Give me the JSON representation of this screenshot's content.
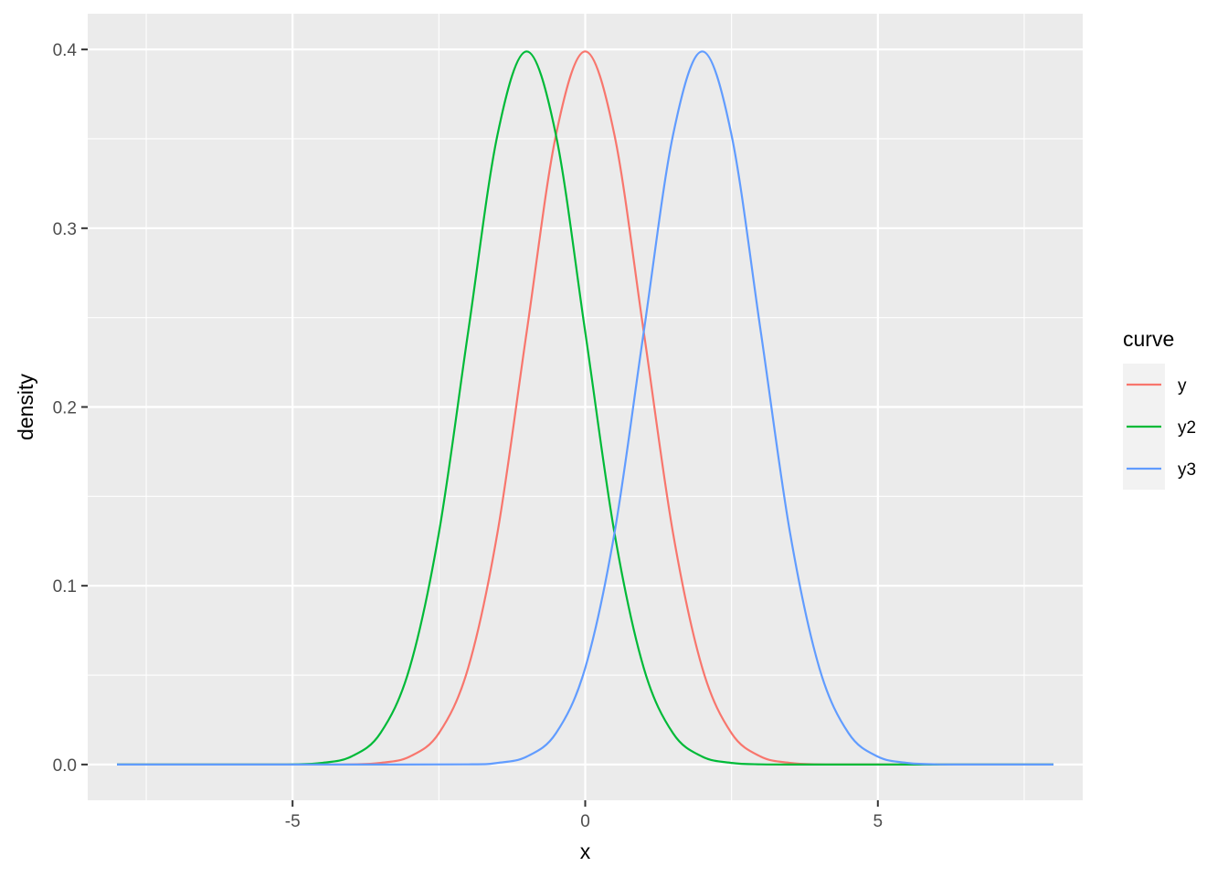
{
  "chart_data": {
    "type": "line",
    "xlabel": "x",
    "ylabel": "density",
    "xlim": [
      -8.5,
      8.5
    ],
    "ylim": [
      -0.02,
      0.42
    ],
    "x_ticks": [
      -5,
      0,
      5
    ],
    "x_tick_labels": [
      "-5",
      "0",
      "5"
    ],
    "x_minor_ticks": [
      -7.5,
      -2.5,
      2.5,
      7.5
    ],
    "y_ticks": [
      0.0,
      0.1,
      0.2,
      0.3,
      0.4
    ],
    "y_tick_labels": [
      "0.0",
      "0.1",
      "0.2",
      "0.3",
      "0.4"
    ],
    "y_minor_ticks": [
      0.05,
      0.15,
      0.25,
      0.35
    ],
    "grid": true,
    "legend": {
      "title": "curve",
      "position": "right"
    },
    "series": [
      {
        "name": "y",
        "color": "#F8766D",
        "x": [
          -8,
          -7,
          -6,
          -5,
          -4,
          -3.5,
          -3,
          -2.5,
          -2,
          -1.5,
          -1,
          -0.5,
          0,
          0.5,
          1,
          1.5,
          2,
          2.5,
          3,
          3.5,
          4,
          5,
          6,
          7,
          8
        ],
        "y": [
          0.0,
          0.0,
          0.0,
          0.0,
          0.0001,
          0.0009,
          0.0044,
          0.0175,
          0.054,
          0.1295,
          0.242,
          0.3521,
          0.3989,
          0.3521,
          0.242,
          0.1295,
          0.054,
          0.0175,
          0.0044,
          0.0009,
          0.0001,
          0.0,
          0.0,
          0.0,
          0.0
        ]
      },
      {
        "name": "y2",
        "color": "#00BA38",
        "x": [
          -8,
          -7,
          -6,
          -5,
          -4.5,
          -4,
          -3.5,
          -3,
          -2.5,
          -2,
          -1.5,
          -1,
          -0.5,
          0,
          0.5,
          1,
          1.5,
          2,
          2.5,
          3,
          4,
          5,
          6,
          7,
          8
        ],
        "y": [
          0.0,
          0.0,
          0.0,
          0.0001,
          0.0009,
          0.0044,
          0.0175,
          0.054,
          0.1295,
          0.242,
          0.3521,
          0.3989,
          0.3521,
          0.242,
          0.1295,
          0.054,
          0.0175,
          0.0044,
          0.0009,
          0.0001,
          0.0,
          0.0,
          0.0,
          0.0,
          0.0
        ]
      },
      {
        "name": "y3",
        "color": "#619CFF",
        "x": [
          -8,
          -6,
          -4,
          -2,
          -1.5,
          -1,
          -0.5,
          0,
          0.5,
          1,
          1.5,
          2,
          2.5,
          3,
          3.5,
          4,
          4.5,
          5,
          5.5,
          6,
          6.5,
          7,
          8
        ],
        "y": [
          0.0,
          0.0,
          0.0,
          0.0001,
          0.0009,
          0.0044,
          0.0175,
          0.054,
          0.1295,
          0.242,
          0.3521,
          0.3989,
          0.3521,
          0.242,
          0.1295,
          0.054,
          0.0175,
          0.0044,
          0.0009,
          0.0001,
          0.0,
          0.0,
          0.0
        ]
      }
    ]
  }
}
